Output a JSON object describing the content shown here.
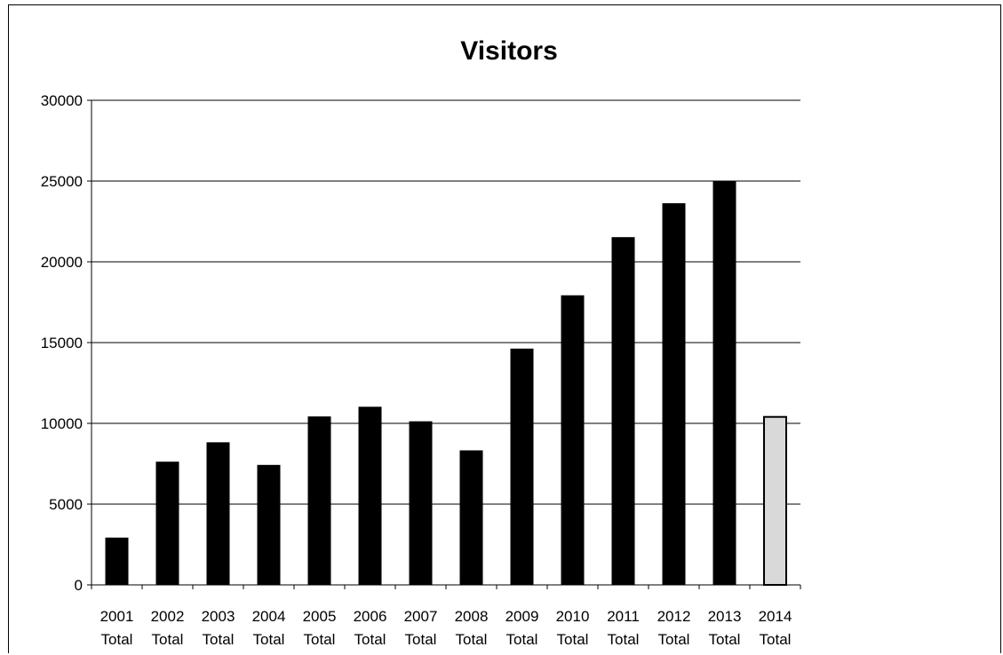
{
  "chart_data": {
    "type": "bar",
    "title": "Visitors",
    "xlabel": "",
    "ylabel": "",
    "ylim": [
      0,
      30000
    ],
    "yticks": [
      0,
      5000,
      10000,
      15000,
      20000,
      25000,
      30000
    ],
    "grid": true,
    "legend": "none",
    "categories": [
      [
        "2001",
        "Total"
      ],
      [
        "2002",
        "Total"
      ],
      [
        "2003",
        "Total"
      ],
      [
        "2004",
        "Total"
      ],
      [
        "2005",
        "Total"
      ],
      [
        "2006",
        "Total"
      ],
      [
        "2007",
        "Total"
      ],
      [
        "2008",
        "Total"
      ],
      [
        "2009",
        "Total"
      ],
      [
        "2010",
        "Total"
      ],
      [
        "2011",
        "Total"
      ],
      [
        "2012",
        "Total"
      ],
      [
        "2013",
        "Total"
      ],
      [
        "2014",
        "Total"
      ]
    ],
    "values": [
      2900,
      7600,
      8800,
      7400,
      10400,
      11000,
      10100,
      8300,
      14600,
      17900,
      21500,
      23600,
      25000,
      10400
    ],
    "bar_colors": [
      "#000000",
      "#000000",
      "#000000",
      "#000000",
      "#000000",
      "#000000",
      "#000000",
      "#000000",
      "#000000",
      "#000000",
      "#000000",
      "#000000",
      "#000000",
      "#d9d9d9"
    ]
  }
}
